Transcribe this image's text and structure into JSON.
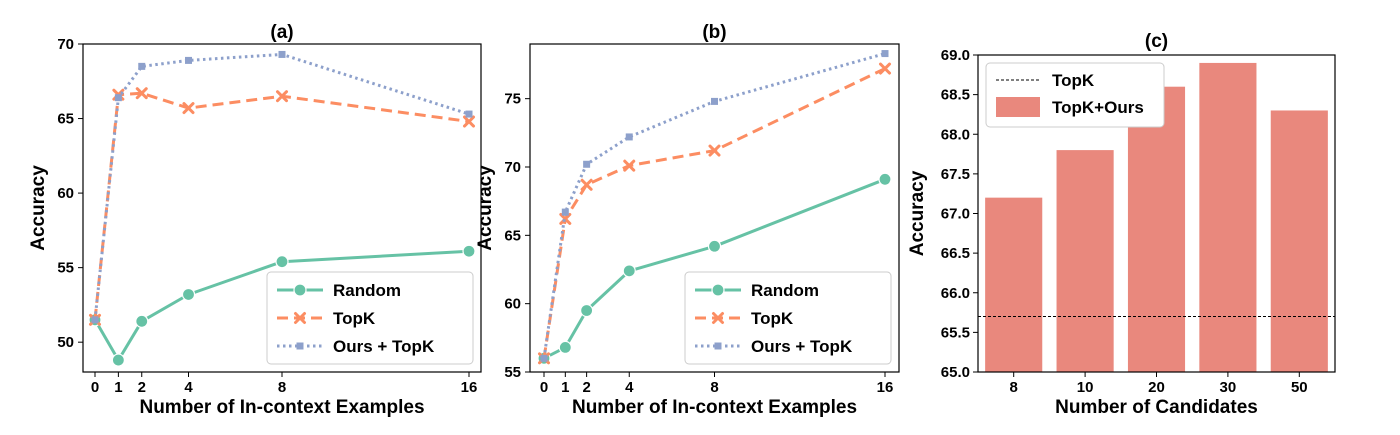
{
  "colors": {
    "random": "#66c2a5",
    "topk": "#fc8d62",
    "ours": "#8da0cb",
    "bar": "#e9887d",
    "baseline": "#000000"
  },
  "chart_data": [
    {
      "type": "line",
      "title": "(a)",
      "xlabel": "Number of In-context Examples",
      "ylabel": "Accuracy",
      "x": [
        0,
        1,
        2,
        4,
        8,
        16
      ],
      "xticks": [
        "0",
        "1",
        "2",
        "4",
        "8",
        "16"
      ],
      "yticks": [
        "50",
        "55",
        "60",
        "65",
        "70"
      ],
      "ylim": [
        48,
        70
      ],
      "legend_position": "lower-right",
      "series": [
        {
          "name": "Random",
          "values": [
            51.5,
            48.8,
            51.4,
            53.2,
            55.4,
            56.1
          ]
        },
        {
          "name": "TopK",
          "values": [
            51.5,
            66.6,
            66.7,
            65.7,
            66.5,
            64.8
          ]
        },
        {
          "name": "Ours + TopK",
          "values": [
            51.5,
            66.4,
            68.5,
            68.9,
            69.3,
            65.3
          ]
        }
      ]
    },
    {
      "type": "line",
      "title": "(b)",
      "xlabel": "Number of In-context Examples",
      "ylabel": "Accuracy",
      "x": [
        0,
        1,
        2,
        4,
        8,
        16
      ],
      "xticks": [
        "0",
        "1",
        "2",
        "4",
        "8",
        "16"
      ],
      "yticks": [
        "55",
        "60",
        "65",
        "70",
        "75"
      ],
      "ylim": [
        55,
        79
      ],
      "legend_position": "lower-right",
      "series": [
        {
          "name": "Random",
          "values": [
            56.0,
            56.8,
            59.5,
            62.4,
            64.2,
            69.1
          ]
        },
        {
          "name": "TopK",
          "values": [
            56.0,
            66.2,
            68.7,
            70.1,
            71.2,
            77.2
          ]
        },
        {
          "name": "Ours + TopK",
          "values": [
            56.0,
            66.7,
            70.2,
            72.2,
            74.8,
            78.3
          ]
        }
      ]
    },
    {
      "type": "bar",
      "title": "(c)",
      "xlabel": "Number of Candidates",
      "ylabel": "Accuracy",
      "categories": [
        "8",
        "10",
        "20",
        "30",
        "50"
      ],
      "yticks": [
        "65.0",
        "65.5",
        "66.0",
        "66.5",
        "67.0",
        "67.5",
        "68.0",
        "68.5",
        "69.0"
      ],
      "ylim": [
        65.0,
        69.0
      ],
      "legend_position": "top-left",
      "series": [
        {
          "name": "TopK+Ours",
          "values": [
            67.2,
            67.8,
            68.6,
            68.9,
            68.3
          ]
        }
      ],
      "baseline": {
        "name": "TopK",
        "value": 65.7
      }
    }
  ]
}
